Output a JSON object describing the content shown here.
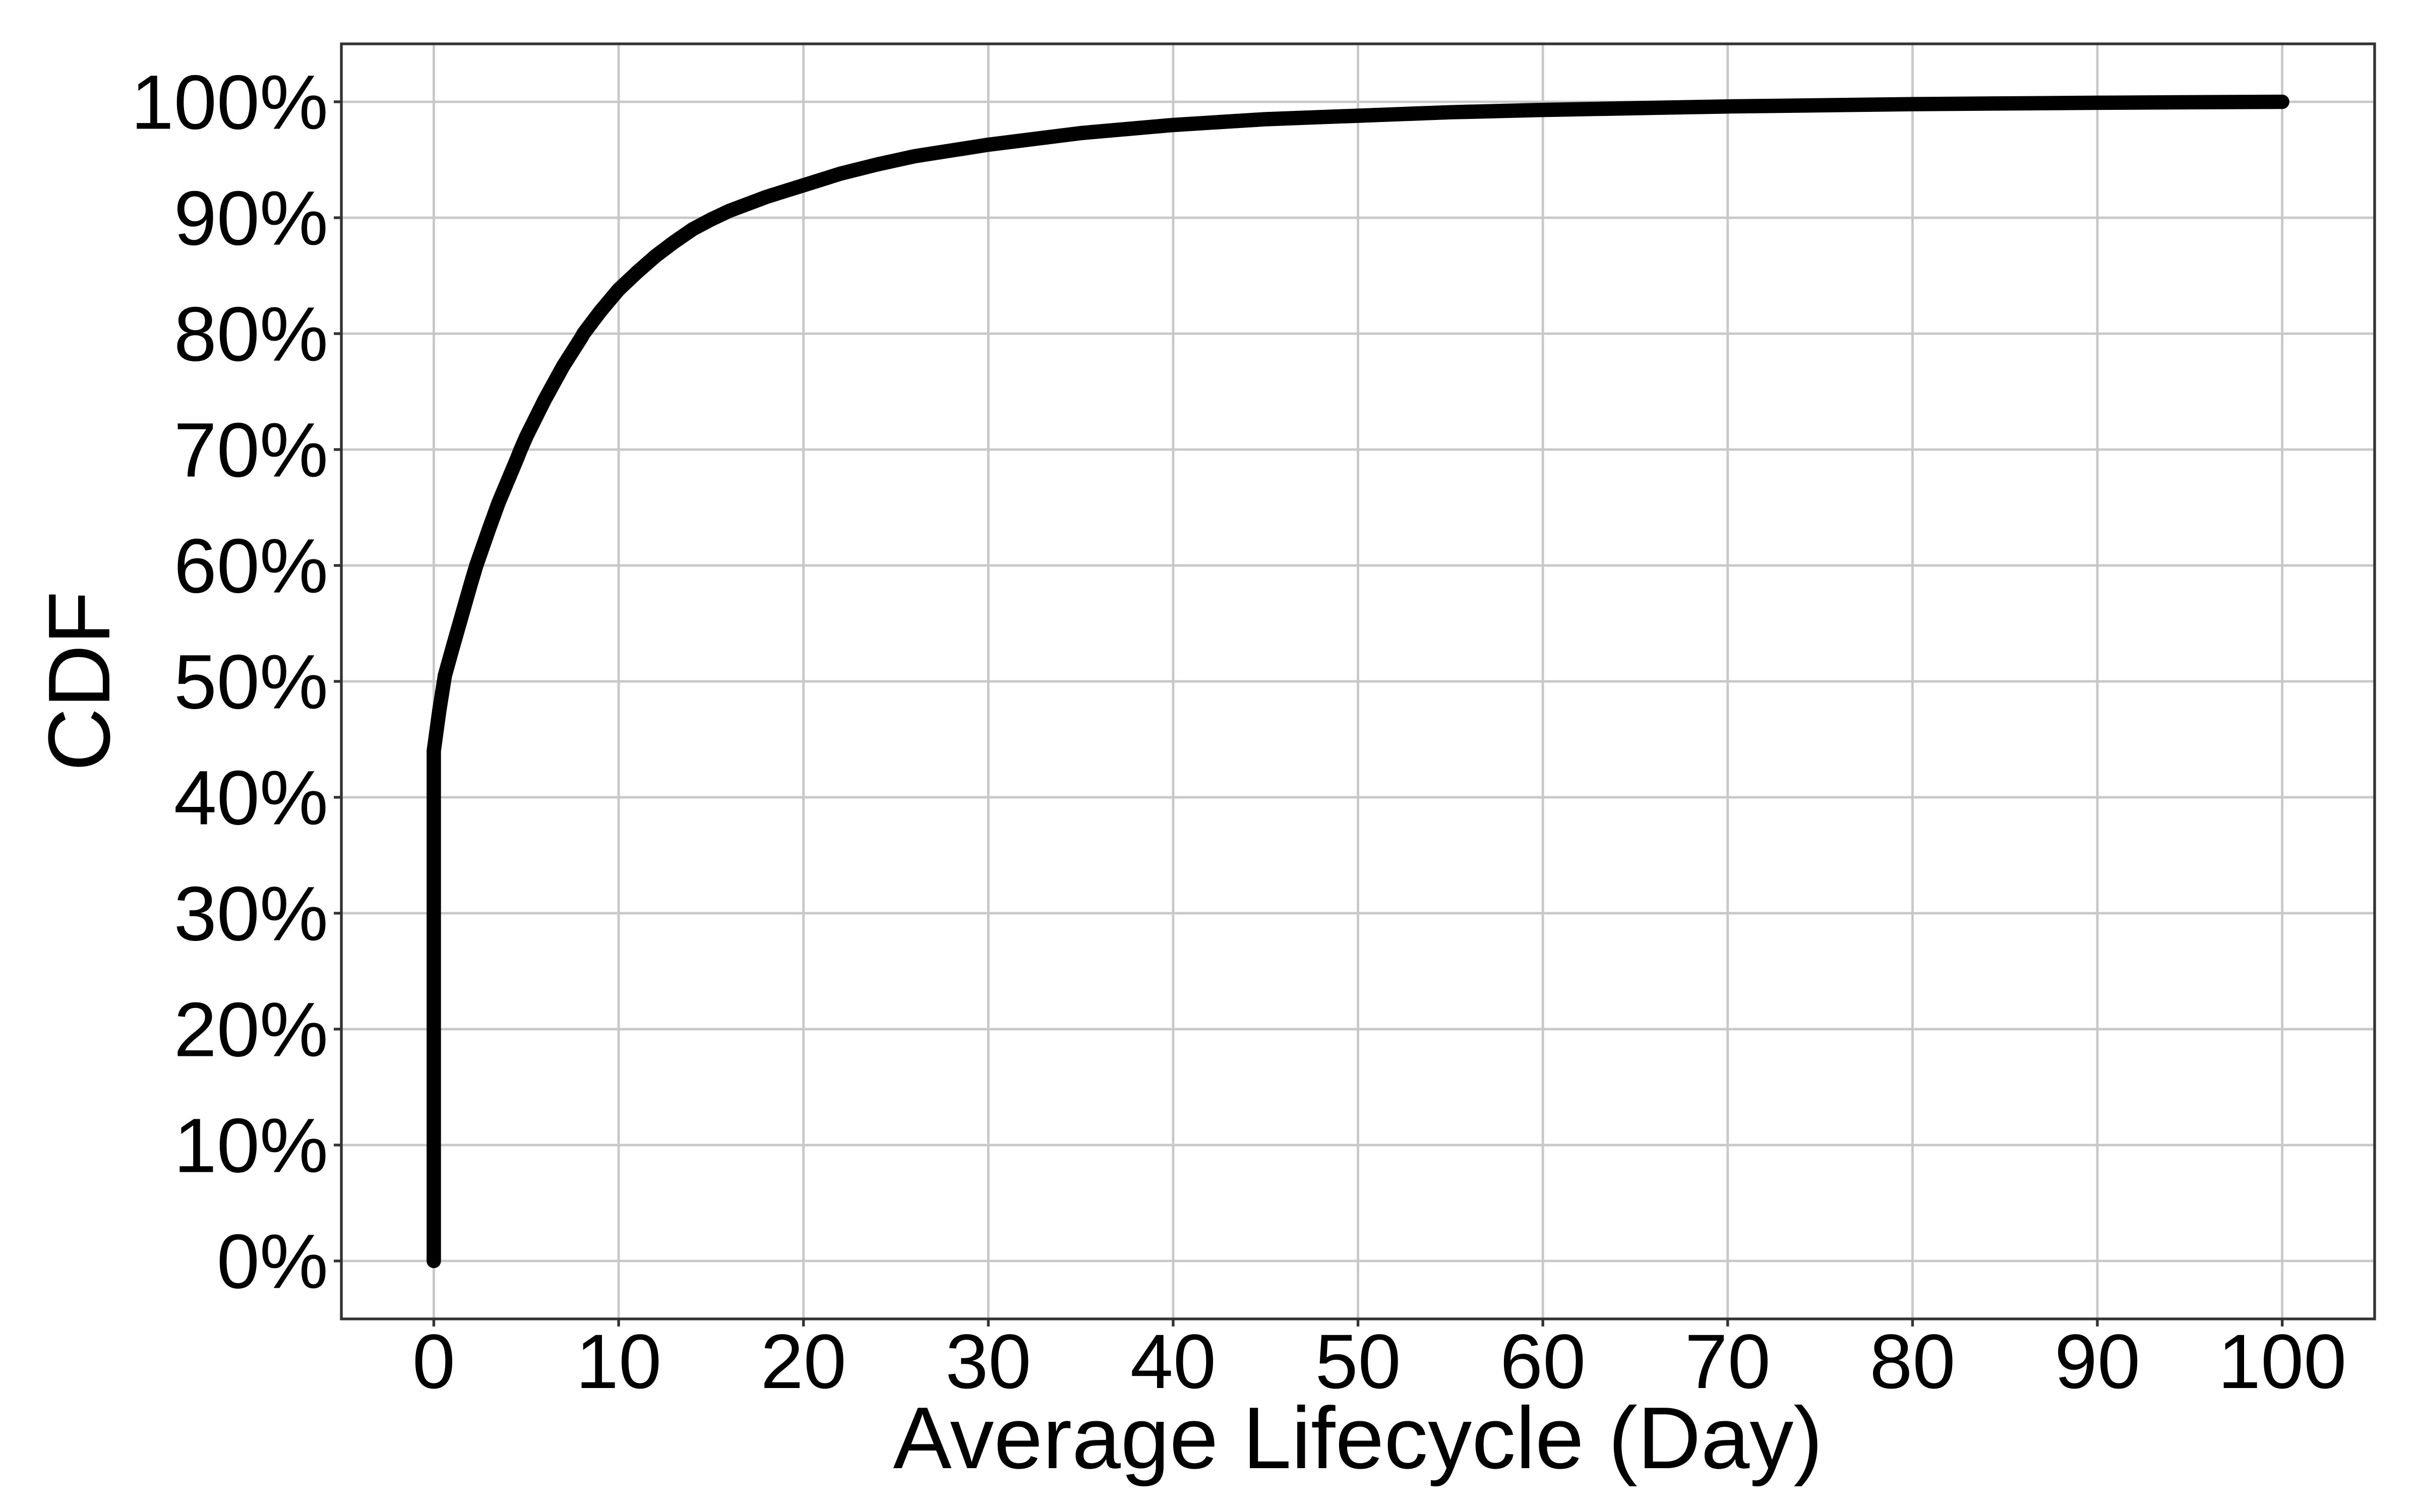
{
  "chart_data": {
    "type": "line",
    "title": "",
    "xlabel": "Average Lifecycle (Day)",
    "ylabel": "CDF",
    "xlim": [
      0,
      100
    ],
    "ylim_pct": [
      0,
      100
    ],
    "axis_expansion": 0.05,
    "grid": "major",
    "legend_shown": false,
    "x_ticks": [
      [
        0,
        "0"
      ],
      [
        10,
        "10"
      ],
      [
        20,
        "20"
      ],
      [
        30,
        "30"
      ],
      [
        40,
        "40"
      ],
      [
        50,
        "50"
      ],
      [
        60,
        "60"
      ],
      [
        70,
        "70"
      ],
      [
        80,
        "80"
      ],
      [
        90,
        "90"
      ],
      [
        100,
        "100"
      ]
    ],
    "y_ticks": [
      [
        0,
        "0%"
      ],
      [
        10,
        "10%"
      ],
      [
        20,
        "20%"
      ],
      [
        30,
        "30%"
      ],
      [
        40,
        "40%"
      ],
      [
        50,
        "50%"
      ],
      [
        60,
        "60%"
      ],
      [
        70,
        "70%"
      ],
      [
        80,
        "80%"
      ],
      [
        90,
        "90%"
      ],
      [
        100,
        "100%"
      ]
    ],
    "colors": {
      "line": "#000000",
      "grid": "#C8C8C8",
      "panel_border": "#333333",
      "tick": "#333333",
      "text": "#000000",
      "background": "#FFFFFF"
    },
    "series": [
      {
        "name": "CDF",
        "points": [
          [
            0,
            0
          ],
          [
            0,
            44
          ],
          [
            0.3,
            47.5
          ],
          [
            0.6,
            50.5
          ],
          [
            1,
            52.8
          ],
          [
            1.5,
            55.6
          ],
          [
            2,
            58.4
          ],
          [
            2.3,
            60
          ],
          [
            3,
            63.2
          ],
          [
            3.5,
            65.4
          ],
          [
            4,
            67.3
          ],
          [
            4.5,
            69.2
          ],
          [
            4.7,
            70
          ],
          [
            5,
            71.1
          ],
          [
            6,
            74.3
          ],
          [
            7,
            77.2
          ],
          [
            8,
            79.7
          ],
          [
            8.1,
            80
          ],
          [
            9,
            81.9
          ],
          [
            10,
            83.8
          ],
          [
            11,
            85.3
          ],
          [
            12,
            86.7
          ],
          [
            13,
            87.9
          ],
          [
            14,
            89
          ],
          [
            15,
            89.85
          ],
          [
            15.2,
            90
          ],
          [
            16,
            90.6
          ],
          [
            17,
            91.2
          ],
          [
            18,
            91.8
          ],
          [
            19,
            92.3
          ],
          [
            20,
            92.8
          ],
          [
            22,
            93.8
          ],
          [
            24,
            94.6
          ],
          [
            26,
            95.3
          ],
          [
            28,
            95.8
          ],
          [
            30,
            96.3
          ],
          [
            35,
            97.3
          ],
          [
            40,
            98.0
          ],
          [
            45,
            98.5
          ],
          [
            50,
            98.8
          ],
          [
            55,
            99.1
          ],
          [
            60,
            99.3
          ],
          [
            70,
            99.6
          ],
          [
            80,
            99.8
          ],
          [
            90,
            99.92
          ],
          [
            100,
            100
          ]
        ]
      }
    ]
  }
}
